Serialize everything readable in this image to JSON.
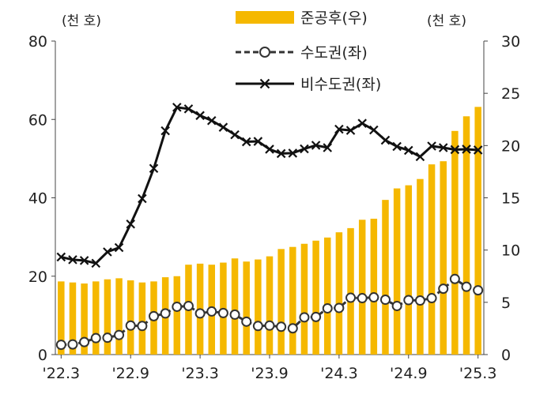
{
  "chart_data": {
    "type": "bar+line",
    "left_unit": "(천 호)",
    "right_unit": "(천 호)",
    "x": [
      "22.3",
      "22.4",
      "22.5",
      "22.6",
      "22.7",
      "22.8",
      "22.9",
      "22.10",
      "22.11",
      "22.12",
      "23.1",
      "23.2",
      "23.3",
      "23.4",
      "23.5",
      "23.6",
      "23.7",
      "23.8",
      "23.9",
      "23.10",
      "23.11",
      "23.12",
      "24.1",
      "24.2",
      "24.3",
      "24.4",
      "24.5",
      "24.6",
      "24.7",
      "24.8",
      "24.9",
      "24.10",
      "24.11",
      "24.12",
      "25.1",
      "25.2",
      "25.3"
    ],
    "x_tick_labels": [
      "'22.3",
      "'22.9",
      "'23.3",
      "'23.9",
      "'24.3",
      "'24.9",
      "'25.3"
    ],
    "left_axis": {
      "min": 0,
      "max": 80,
      "ticks": [
        0,
        20,
        40,
        60,
        80
      ]
    },
    "right_axis": {
      "min": 0,
      "max": 30,
      "ticks": [
        0,
        5,
        10,
        15,
        20,
        25,
        30
      ]
    },
    "series": [
      {
        "name": "준공후(우)",
        "kind": "bar",
        "axis": "right",
        "color": "#F5B800",
        "values": [
          7.0,
          6.9,
          6.8,
          7.0,
          7.2,
          7.3,
          7.1,
          6.9,
          7.0,
          7.4,
          7.5,
          8.6,
          8.7,
          8.6,
          8.8,
          9.2,
          8.9,
          9.1,
          9.4,
          10.1,
          10.3,
          10.6,
          10.9,
          11.2,
          11.7,
          12.1,
          12.9,
          13.0,
          14.8,
          15.9,
          16.2,
          16.8,
          18.2,
          18.5,
          21.4,
          22.8,
          23.7
        ]
      },
      {
        "name": "수도권(좌)",
        "kind": "line-circle",
        "axis": "left",
        "color": "#333333",
        "values": [
          2.5,
          2.6,
          3.2,
          4.2,
          4.3,
          5.0,
          7.4,
          7.3,
          9.8,
          10.5,
          12.2,
          12.4,
          10.5,
          11.0,
          10.6,
          10.2,
          8.4,
          7.3,
          7.4,
          7.1,
          6.7,
          9.5,
          9.6,
          11.8,
          11.9,
          14.5,
          14.4,
          14.6,
          14.0,
          12.4,
          13.9,
          13.8,
          14.4,
          16.8,
          19.3,
          17.3,
          16.4
        ]
      },
      {
        "name": "비수도권(좌)",
        "kind": "line-x",
        "axis": "left",
        "color": "#111111",
        "values": [
          24.9,
          24.2,
          24.0,
          23.3,
          26.2,
          27.3,
          33.3,
          39.8,
          47.5,
          57.1,
          63.1,
          62.7,
          61.0,
          59.7,
          58.0,
          56.1,
          54.3,
          54.4,
          52.4,
          51.3,
          51.4,
          52.5,
          53.4,
          52.8,
          57.5,
          57.2,
          59.0,
          57.3,
          54.7,
          53.1,
          52.1,
          50.5,
          53.2,
          52.8,
          52.3,
          52.4,
          52.2
        ]
      }
    ]
  }
}
